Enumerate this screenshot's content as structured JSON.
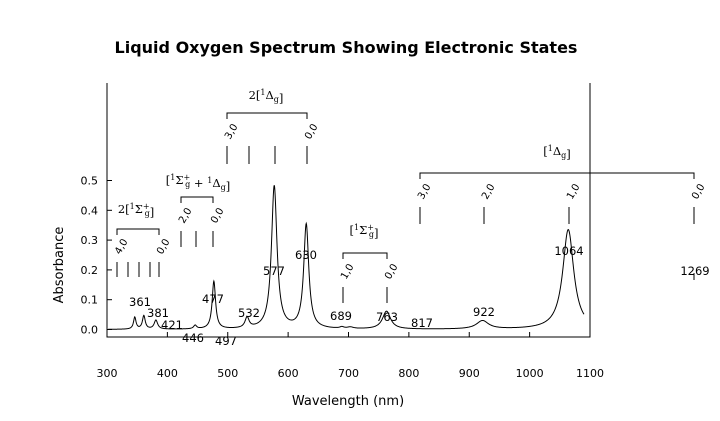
{
  "chart_data": {
    "type": "line",
    "title": "Liquid Oxygen Spectrum Showing Electronic States",
    "xlabel": "Wavelength (nm)",
    "ylabel": "Absorbance",
    "xlim": [
      300,
      1100
    ],
    "ylim": [
      -0.02,
      0.54
    ],
    "x_ticks": [
      "300",
      "400",
      "500",
      "600",
      "700",
      "800",
      "900",
      "1000",
      "1100"
    ],
    "y_ticks": [
      "0.0",
      "0.1",
      "0.2",
      "0.3",
      "0.4",
      "0.5"
    ],
    "grid": false,
    "baseline": 0.0,
    "peaks": [
      {
        "label": "361",
        "x": 361,
        "y": 0.045
      },
      {
        "label": "381",
        "x": 381,
        "y": 0.03
      },
      {
        "label": "421",
        "x": 421,
        "y": 0.0
      },
      {
        "label": "446",
        "x": 446,
        "y": 0.012
      },
      {
        "label": "477",
        "x": 477,
        "y": 0.16
      },
      {
        "label": "497",
        "x": 497,
        "y": 0.0
      },
      {
        "label": "532",
        "x": 532,
        "y": 0.035
      },
      {
        "label": "577",
        "x": 577,
        "y": 0.48
      },
      {
        "label": "630",
        "x": 630,
        "y": 0.35
      },
      {
        "label": "689",
        "x": 689,
        "y": 0.005
      },
      {
        "label": "763",
        "x": 763,
        "y": 0.06
      },
      {
        "label": "817",
        "x": 817,
        "y": 0.0
      },
      {
        "label": "922",
        "x": 922,
        "y": 0.028
      },
      {
        "label": "1064",
        "x": 1064,
        "y": 0.335
      },
      {
        "label": "1269",
        "x": 1269,
        "y": null
      }
    ],
    "extra_peaks": [
      {
        "x": 346,
        "y": 0.04
      },
      {
        "x": 703,
        "y": 0.005
      }
    ],
    "transition_groups": [
      {
        "label_main": "2[",
        "label_sym": "1",
        "label_greek": "Σ",
        "label_sub": "g",
        "label_sup": "+",
        "label_close": "]",
        "levels": [
          "4,0",
          "",
          "",
          "",
          "0,0"
        ],
        "x": [
          320,
          333,
          346,
          361,
          381
        ]
      },
      {
        "label_main": "[",
        "label_sym": "1",
        "label_greek": "Σ",
        "label_sub": "g",
        "label_sup": "+",
        "label_extra": " + ",
        "label_greek2": "Δ",
        "label_sub2": "g",
        "label_close": "]",
        "levels": [
          "2,0",
          "",
          "0,0"
        ],
        "x": [
          421,
          446,
          477
        ]
      },
      {
        "label_main": "2[",
        "label_sym": "1",
        "label_greek": "Δ",
        "label_sub": "g",
        "label_close": "]",
        "levels": [
          "3,0",
          "",
          "",
          "0,0"
        ],
        "x": [
          497,
          532,
          577,
          630
        ]
      },
      {
        "label_main": "[",
        "label_sym": "1",
        "label_greek": "Σ",
        "label_sub": "g",
        "label_sup": "+",
        "label_close": "]",
        "levels": [
          "1,0",
          "0,0"
        ],
        "x": [
          689,
          763
        ]
      },
      {
        "label_main": "[",
        "label_sym": "1",
        "label_greek": "Δ",
        "label_sub": "g",
        "label_close": "]",
        "levels": [
          "3,0",
          "2,0",
          "1,0",
          "0,0"
        ],
        "x": [
          817,
          922,
          1064,
          1269
        ]
      }
    ]
  },
  "colors": {
    "line": "#000000",
    "background": "#ffffff"
  }
}
